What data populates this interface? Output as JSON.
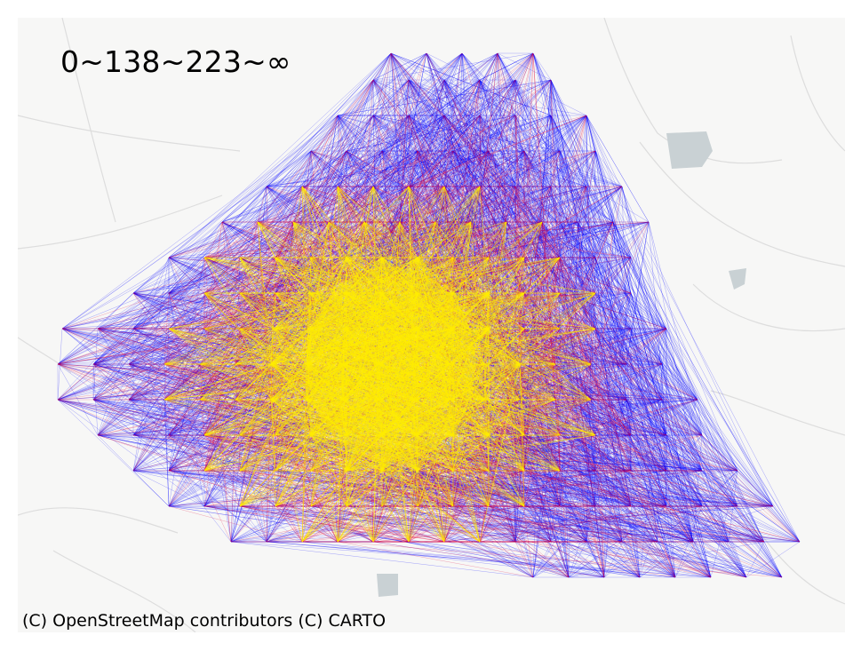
{
  "legend_label": "0~138~223~∞",
  "attribution": "(C) OpenStreetMap contributors (C) CARTO",
  "colors": {
    "band_low": "#ffee00",
    "band_mid": "#e0003a",
    "band_high": "#0000ff",
    "basemap": "#f7f7f6",
    "water": "#c9d1d4",
    "road": "#dcdcdc"
  }
}
